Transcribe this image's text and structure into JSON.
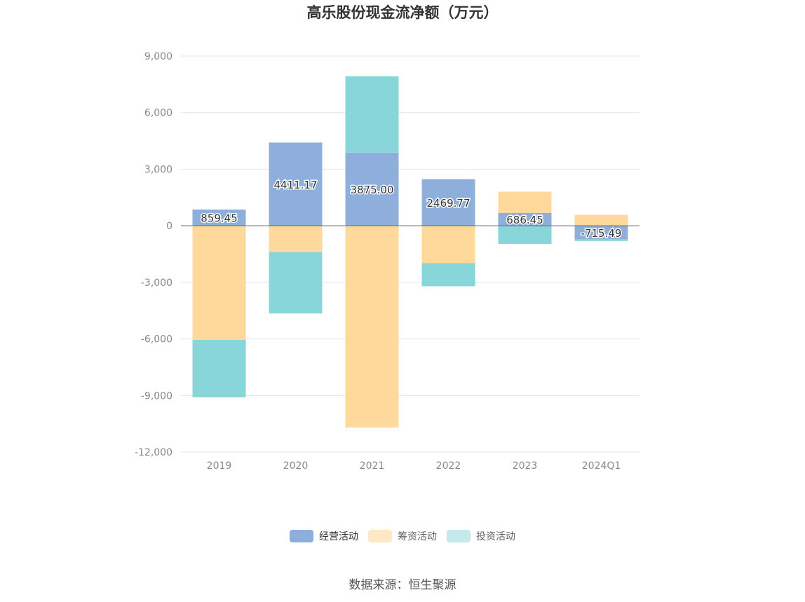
{
  "chart_data": {
    "type": "bar",
    "stacked": true,
    "title": "高乐股份现金流净额（万元）",
    "categories": [
      "2019",
      "2020",
      "2021",
      "2022",
      "2023",
      "2024Q1"
    ],
    "series": [
      {
        "name": "经营活动",
        "color": "#8eaedb",
        "values": [
          859.45,
          4411.17,
          3875.0,
          2469.77,
          686.45,
          -715.49
        ]
      },
      {
        "name": "筹资活动",
        "color": "#ffd99b",
        "values": [
          -6050,
          -1400,
          -10700,
          -1980,
          1120,
          580
        ]
      },
      {
        "name": "投资活动",
        "color": "#88d6d9",
        "values": [
          -3050,
          -3250,
          4050,
          -1230,
          -960,
          -90
        ]
      }
    ],
    "data_labels": [
      "859.45",
      "4411.17",
      "3875.00",
      "2469.77",
      "686.45",
      "-715.49"
    ],
    "ylim": [
      -12000,
      9000
    ],
    "yticks": [
      9000,
      6000,
      3000,
      0,
      -3000,
      -6000,
      -9000,
      -12000
    ],
    "ytick_labels": [
      "9,000",
      "6,000",
      "3,000",
      "0",
      "-3,000",
      "-6,000",
      "-9,000",
      "-12,000"
    ],
    "grid": true,
    "legend_position": "bottom-center",
    "source": "数据来源：恒生聚源"
  }
}
